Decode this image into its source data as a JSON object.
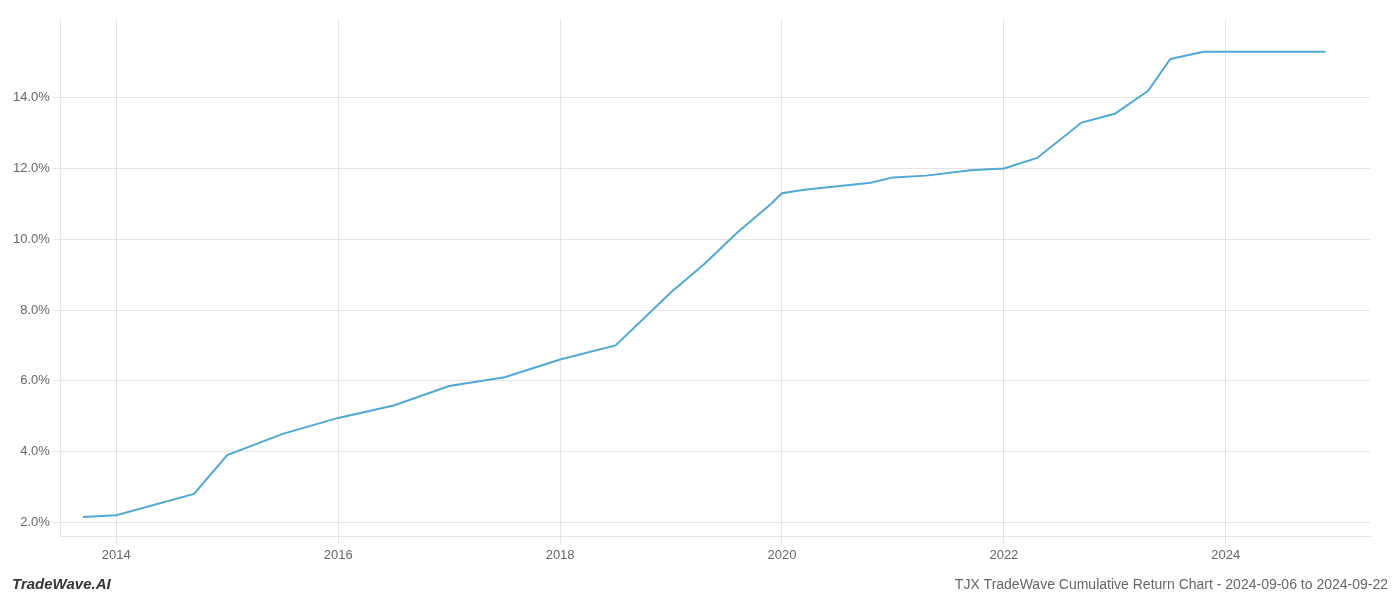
{
  "chart_data": {
    "type": "line",
    "title": "TJX TradeWave Cumulative Return Chart - 2024-09-06 to 2024-09-22",
    "annotations": [
      "TradeWave.AI"
    ],
    "x": [
      2013.7,
      2014.0,
      2014.7,
      2015.0,
      2015.5,
      2016.0,
      2016.5,
      2017.0,
      2017.5,
      2018.0,
      2018.5,
      2019.0,
      2019.3,
      2019.6,
      2019.9,
      2020.0,
      2020.2,
      2020.5,
      2020.8,
      2021.0,
      2021.3,
      2021.7,
      2022.0,
      2022.3,
      2022.7,
      2023.0,
      2023.3,
      2023.5,
      2023.8,
      2024.0,
      2024.9
    ],
    "values": [
      2.15,
      2.2,
      2.8,
      3.9,
      4.5,
      4.95,
      5.3,
      5.85,
      6.1,
      6.6,
      7.0,
      8.5,
      9.3,
      10.2,
      11.0,
      11.3,
      11.4,
      11.5,
      11.6,
      11.75,
      11.8,
      11.95,
      12.0,
      12.3,
      13.3,
      13.55,
      14.2,
      15.1,
      15.3,
      15.3,
      15.3
    ],
    "color": "#4fa8d5",
    "xlim": [
      2013.5,
      2025.3
    ],
    "ylim": [
      1.6,
      16.2
    ],
    "xticks": [
      2014,
      2016,
      2018,
      2020,
      2022,
      2024
    ],
    "yticks": [
      {
        "value": 2.0,
        "label": "2.0%"
      },
      {
        "value": 4.0,
        "label": "4.0%"
      },
      {
        "value": 6.0,
        "label": "6.0%"
      },
      {
        "value": 8.0,
        "label": "8.0%"
      },
      {
        "value": 10.0,
        "label": "10.0%"
      },
      {
        "value": 12.0,
        "label": "12.0%"
      },
      {
        "value": 14.0,
        "label": "14.0%"
      }
    ],
    "grid": true
  }
}
